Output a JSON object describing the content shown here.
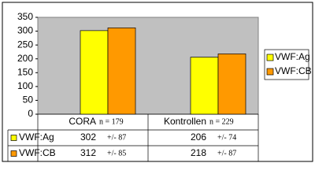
{
  "chart_data": {
    "type": "bar",
    "categories": [
      "CORA",
      "Kontrollen"
    ],
    "n_labels": [
      "n = 179",
      "n = 229"
    ],
    "series": [
      {
        "name": "VWF:Ag",
        "color": "#ffff00",
        "values": [
          302,
          206
        ],
        "error_labels": [
          "+/- 87",
          "+/- 74"
        ]
      },
      {
        "name": "VWF:CB",
        "color": "#ff9900",
        "values": [
          312,
          218
        ],
        "error_labels": [
          "+/- 85",
          "+/- 87"
        ]
      }
    ],
    "ylim": [
      0,
      350
    ],
    "yticks": [
      0,
      50,
      100,
      150,
      200,
      250,
      300,
      350
    ],
    "grid": false,
    "plot_color": "#c0c0c0",
    "legend": "right"
  }
}
